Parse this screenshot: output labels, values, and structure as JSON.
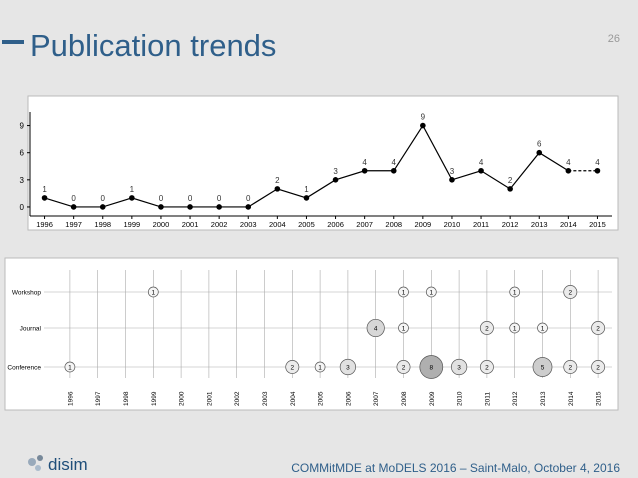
{
  "header": {
    "title": "Publication trends",
    "page_number": "26"
  },
  "footer": {
    "logo": "disim",
    "text": "COMMitMDE at MoDELS 2016 – Saint-Malo, October 4, 2016"
  },
  "chart_data": [
    {
      "type": "line",
      "categories": [
        "1996",
        "1997",
        "1998",
        "1999",
        "2000",
        "2001",
        "2002",
        "2003",
        "2004",
        "2005",
        "2006",
        "2007",
        "2008",
        "2009",
        "2010",
        "2011",
        "2012",
        "2013",
        "2014",
        "2015"
      ],
      "values": [
        1,
        0,
        0,
        1,
        0,
        0,
        0,
        0,
        2,
        1,
        3,
        4,
        4,
        9,
        3,
        4,
        2,
        6,
        4,
        4
      ],
      "color": "#000000",
      "ylim": [
        -1,
        10.5
      ],
      "yticks": [
        0,
        3,
        6,
        9
      ]
    },
    {
      "type": "bubble",
      "categories": [
        "1996",
        "1997",
        "1998",
        "1999",
        "2000",
        "2001",
        "2002",
        "2003",
        "2004",
        "2005",
        "2006",
        "2007",
        "2008",
        "2009",
        "2010",
        "2011",
        "2012",
        "2013",
        "2014",
        "2015"
      ],
      "series": [
        {
          "name": "Workshop",
          "values": [
            null,
            null,
            null,
            1,
            null,
            null,
            null,
            null,
            null,
            null,
            null,
            null,
            1,
            1,
            null,
            null,
            1,
            null,
            2,
            null
          ]
        },
        {
          "name": "Journal",
          "values": [
            null,
            null,
            null,
            null,
            null,
            null,
            null,
            null,
            null,
            null,
            null,
            4,
            1,
            null,
            null,
            2,
            1,
            1,
            null,
            2
          ]
        },
        {
          "name": "Conference",
          "values": [
            1,
            null,
            null,
            null,
            null,
            null,
            null,
            null,
            2,
            1,
            3,
            null,
            2,
            8,
            3,
            2,
            null,
            5,
            2,
            2
          ]
        }
      ]
    }
  ]
}
